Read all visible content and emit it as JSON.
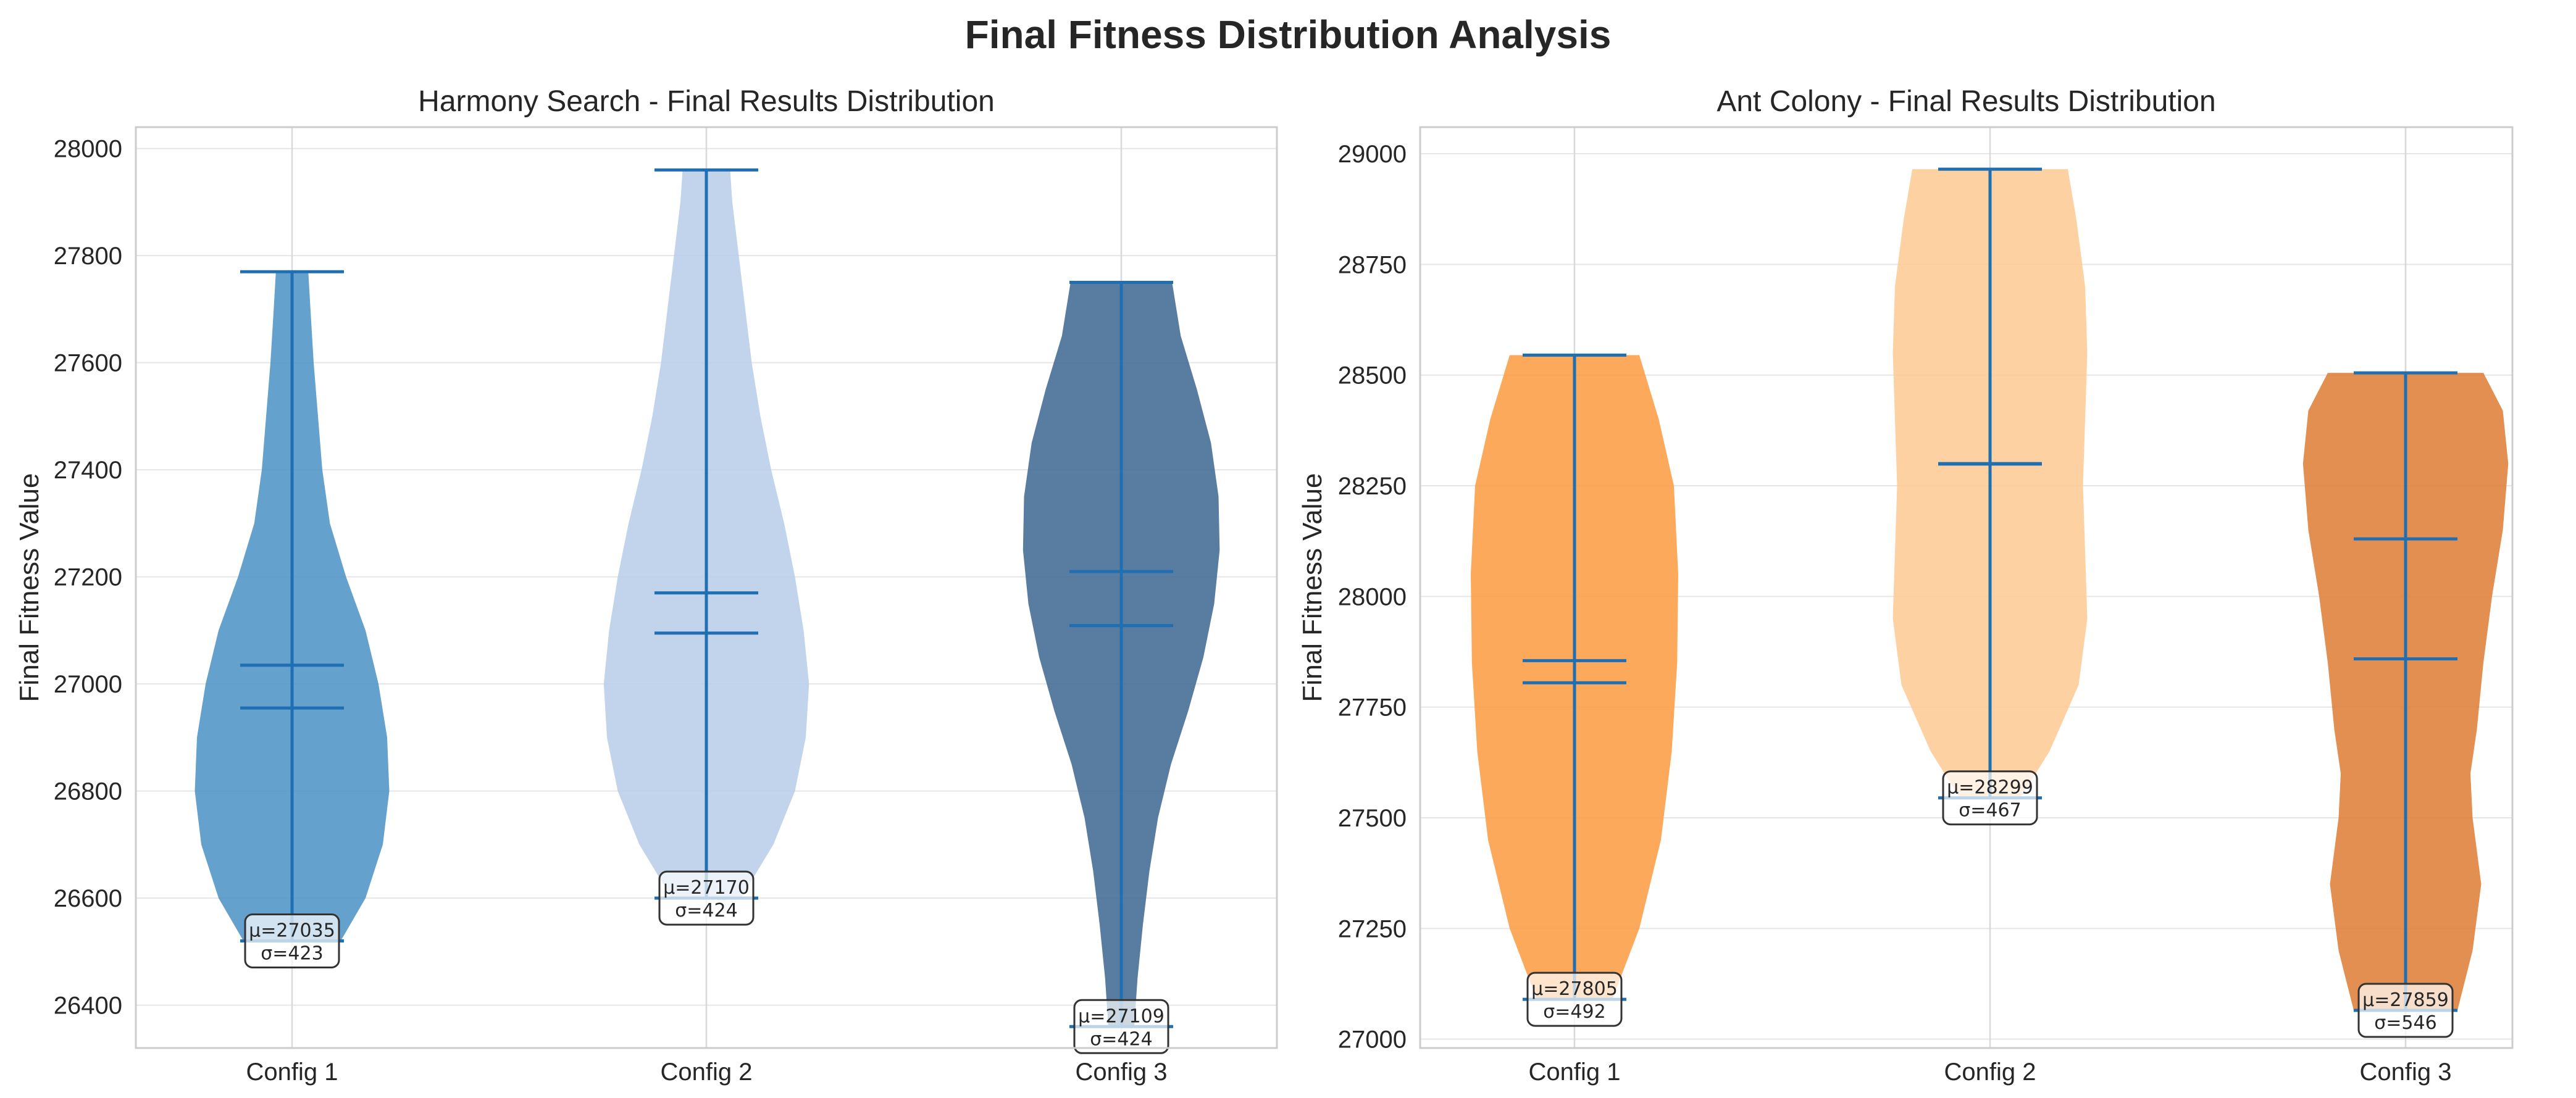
{
  "figure": {
    "title": "Final Fitness Distribution Analysis"
  },
  "chart_data": [
    {
      "type": "violin",
      "title": "Harmony Search - Final Results Distribution",
      "xlabel": "",
      "ylabel": "Final Fitness Value",
      "ylim": [
        26320,
        28040
      ],
      "yticks": [
        26400,
        26600,
        26800,
        27000,
        27200,
        27400,
        27600,
        27800,
        28000
      ],
      "grid": true,
      "categories": [
        "Config 1",
        "Config 2",
        "Config 3"
      ],
      "colors": [
        "#4a90c4",
        "#b7cde9",
        "#3c6691"
      ],
      "line_color": "#1f6fb2",
      "series": [
        {
          "min": 26520,
          "max": 27770,
          "mean": 27035,
          "median": 26955,
          "profile": [
            [
              26520,
              0.45
            ],
            [
              26600,
              0.68
            ],
            [
              26700,
              0.84
            ],
            [
              26800,
              0.9
            ],
            [
              26900,
              0.88
            ],
            [
              27000,
              0.8
            ],
            [
              27100,
              0.68
            ],
            [
              27200,
              0.5
            ],
            [
              27300,
              0.35
            ],
            [
              27400,
              0.28
            ],
            [
              27500,
              0.24
            ],
            [
              27600,
              0.2
            ],
            [
              27700,
              0.17
            ],
            [
              27770,
              0.15
            ]
          ],
          "label_mean": "μ=27035",
          "label_std": "σ=423"
        },
        {
          "min": 26600,
          "max": 27960,
          "mean": 27170,
          "median": 27095,
          "profile": [
            [
              26600,
              0.32
            ],
            [
              26700,
              0.62
            ],
            [
              26800,
              0.82
            ],
            [
              26900,
              0.92
            ],
            [
              27000,
              0.95
            ],
            [
              27100,
              0.9
            ],
            [
              27200,
              0.82
            ],
            [
              27300,
              0.72
            ],
            [
              27400,
              0.6
            ],
            [
              27500,
              0.5
            ],
            [
              27600,
              0.42
            ],
            [
              27700,
              0.36
            ],
            [
              27800,
              0.3
            ],
            [
              27900,
              0.24
            ],
            [
              27960,
              0.22
            ]
          ],
          "label_mean": "μ=27170",
          "label_std": "σ=424"
        },
        {
          "min": 26360,
          "max": 27750,
          "mean": 27109,
          "median": 27210,
          "profile": [
            [
              26360,
              0.12
            ],
            [
              26450,
              0.15
            ],
            [
              26550,
              0.2
            ],
            [
              26650,
              0.26
            ],
            [
              26750,
              0.34
            ],
            [
              26850,
              0.46
            ],
            [
              26950,
              0.62
            ],
            [
              27050,
              0.76
            ],
            [
              27150,
              0.86
            ],
            [
              27250,
              0.91
            ],
            [
              27350,
              0.9
            ],
            [
              27450,
              0.83
            ],
            [
              27550,
              0.7
            ],
            [
              27650,
              0.55
            ],
            [
              27750,
              0.47
            ]
          ],
          "label_mean": "μ=27109",
          "label_std": "σ=424"
        }
      ]
    },
    {
      "type": "violin",
      "title": "Ant Colony - Final Results Distribution",
      "xlabel": "",
      "ylabel": "Final Fitness Value",
      "ylim": [
        26980,
        29060
      ],
      "yticks": [
        27000,
        27250,
        27500,
        27750,
        28000,
        28250,
        28500,
        28750,
        29000
      ],
      "grid": true,
      "categories": [
        "Config 1",
        "Config 2",
        "Config 3"
      ],
      "colors": [
        "#fd9a3f",
        "#fdc992",
        "#dd7b32"
      ],
      "line_color": "#1f6fb2",
      "series": [
        {
          "min": 27090,
          "max": 28545,
          "mean": 27805,
          "median": 27855,
          "profile": [
            [
              27090,
              0.35
            ],
            [
              27250,
              0.6
            ],
            [
              27450,
              0.8
            ],
            [
              27650,
              0.9
            ],
            [
              27850,
              0.95
            ],
            [
              28050,
              0.96
            ],
            [
              28250,
              0.92
            ],
            [
              28400,
              0.78
            ],
            [
              28545,
              0.6
            ]
          ],
          "label_mean": "μ=27805",
          "label_std": "σ=492"
        },
        {
          "min": 27545,
          "max": 28965,
          "mean": 28299,
          "median": 28300,
          "profile": [
            [
              27545,
              0.28
            ],
            [
              27650,
              0.55
            ],
            [
              27800,
              0.82
            ],
            [
              27950,
              0.9
            ],
            [
              28100,
              0.88
            ],
            [
              28250,
              0.86
            ],
            [
              28400,
              0.88
            ],
            [
              28550,
              0.9
            ],
            [
              28700,
              0.88
            ],
            [
              28850,
              0.8
            ],
            [
              28965,
              0.72
            ]
          ],
          "label_mean": "μ=28299",
          "label_std": "σ=467"
        },
        {
          "min": 27065,
          "max": 28505,
          "mean": 27859,
          "median": 28130,
          "profile": [
            [
              27065,
              0.48
            ],
            [
              27200,
              0.62
            ],
            [
              27350,
              0.7
            ],
            [
              27500,
              0.62
            ],
            [
              27600,
              0.6
            ],
            [
              27700,
              0.66
            ],
            [
              27850,
              0.72
            ],
            [
              28000,
              0.8
            ],
            [
              28150,
              0.9
            ],
            [
              28300,
              0.95
            ],
            [
              28420,
              0.9
            ],
            [
              28505,
              0.72
            ]
          ],
          "label_mean": "μ=27859",
          "label_std": "σ=546"
        }
      ]
    }
  ]
}
